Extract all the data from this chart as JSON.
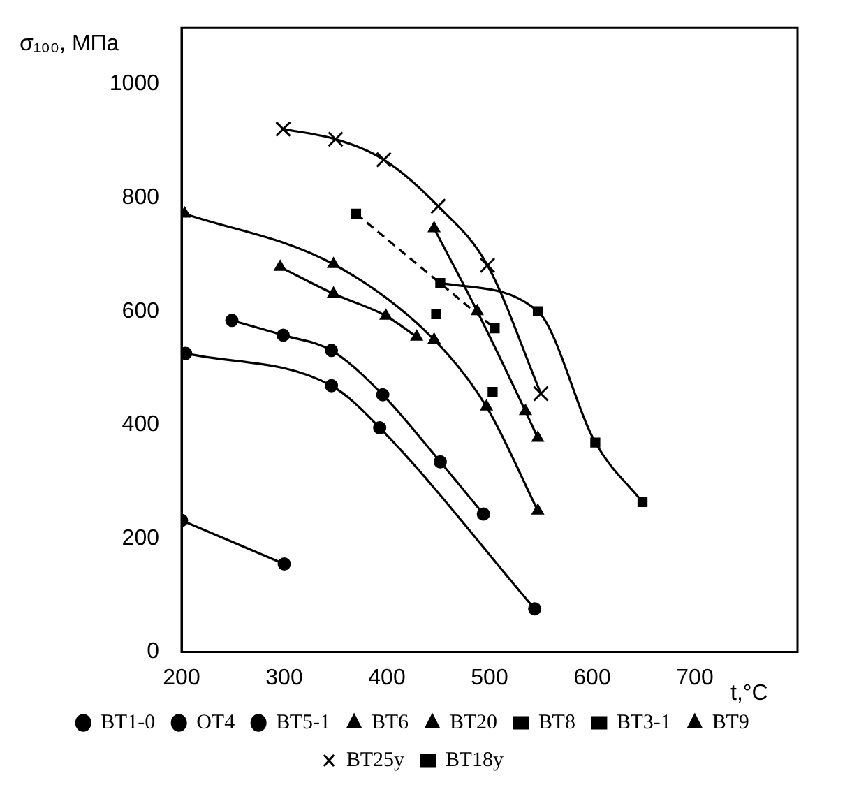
{
  "chart_data": {
    "type": "line",
    "xlabel": "t,°C",
    "ylabel": "σ₁₀₀, МПа",
    "xlim": [
      200,
      800
    ],
    "xticks": [
      200,
      300,
      400,
      500,
      600,
      700
    ],
    "ylim": [
      0,
      1100
    ],
    "yticks": [
      0,
      200,
      400,
      600,
      800,
      1000
    ],
    "grid": false,
    "legend": "bottom",
    "line_style": "solid",
    "series": [
      {
        "name": "ВТ1-0",
        "color": "#000000",
        "marker": "circle",
        "x": [
          200,
          300
        ],
        "values": [
          232,
          155
        ]
      },
      {
        "name": "ОТ4",
        "color": "#000000",
        "marker": "circle",
        "x": [
          204,
          346,
          393,
          544
        ],
        "values": [
          526,
          469,
          395,
          76
        ]
      },
      {
        "name": "ВТ5-1",
        "color": "#000000",
        "marker": "circle",
        "x": [
          249,
          299,
          346,
          396,
          452,
          494
        ],
        "values": [
          584,
          558,
          531,
          453,
          335,
          243
        ]
      },
      {
        "name": "ВТ6",
        "color": "#000000",
        "marker": "triangle",
        "x": [
          296,
          348,
          399,
          429
        ],
        "values": [
          678,
          631,
          592,
          555
        ]
      },
      {
        "name": "ВТ20",
        "color": "#000000",
        "marker": "triangle",
        "x": [
          203,
          348,
          446,
          497,
          547
        ],
        "values": [
          772,
          683,
          550,
          432,
          249
        ]
      },
      {
        "name": "ВТ8",
        "color": "#000000",
        "marker": "square",
        "type": "scatter",
        "x": [
          448,
          503
        ],
        "values": [
          595,
          458
        ]
      },
      {
        "name": "ВТ3-1",
        "color": "#000000",
        "marker": "square",
        "line_style": "dashed",
        "x": [
          370,
          505
        ],
        "values": [
          772,
          570
        ]
      },
      {
        "name": "ВТ9",
        "color": "#000000",
        "marker": "triangle",
        "x": [
          446,
          488,
          535,
          547
        ],
        "values": [
          746,
          600,
          424,
          377
        ]
      },
      {
        "name": "ВТ25у",
        "color": "#000000",
        "marker": "cross",
        "x": [
          299,
          350,
          397,
          450,
          498,
          550
        ],
        "values": [
          921,
          903,
          867,
          785,
          681,
          455
        ]
      },
      {
        "name": "ВТ18у",
        "color": "#000000",
        "marker": "square",
        "x": [
          452,
          547,
          603,
          649
        ],
        "values": [
          650,
          600,
          369,
          264
        ]
      }
    ]
  }
}
